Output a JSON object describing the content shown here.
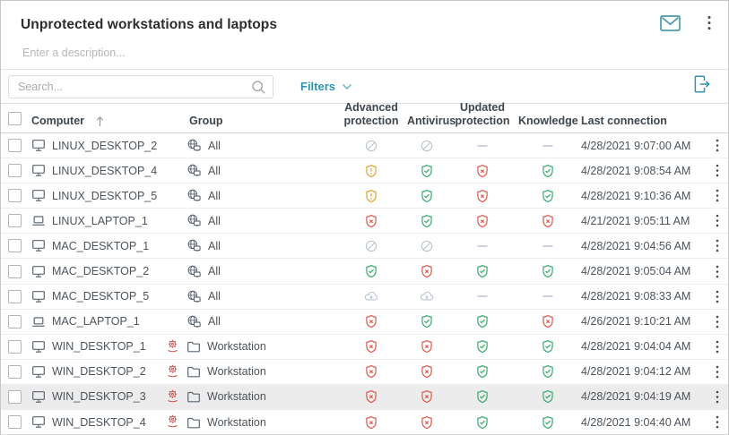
{
  "header": {
    "title": "Unprotected workstations and laptops",
    "icons": [
      "envelope-icon",
      "kebab-menu-icon"
    ]
  },
  "description_placeholder": "Enter a description...",
  "toolbar": {
    "search_placeholder": "Search...",
    "filters_label": "Filters",
    "icons": [
      "search-icon",
      "chevron-down-icon",
      "export-icon"
    ]
  },
  "colors": {
    "accent_teal": "#2e95ad",
    "ok_green": "#3eae73",
    "error_red": "#dd5f53",
    "warning_orange": "#e8a33d",
    "muted_blue_gray": "#b9c3d2",
    "highlight_row_bg": "#ececec"
  },
  "table": {
    "sort": {
      "column": "Computer",
      "direction": "asc"
    },
    "columns": [
      {
        "label": "Computer"
      },
      {
        "label": "Group"
      },
      {
        "label": "Advanced protection"
      },
      {
        "label": "Antivirus"
      },
      {
        "label": "Updated protection"
      },
      {
        "label": "Knowledge"
      },
      {
        "label": "Last connection"
      }
    ],
    "status_icon_names": {
      "disabled": "no-license-slashed-circle-icon",
      "warning": "shield-warning-icon",
      "ok": "shield-ok-icon",
      "error": "shield-error-icon",
      "none": "dash-icon",
      "installing": "cloud-installing-icon"
    },
    "rows": [
      {
        "name": "LINUX_DESKTOP_2",
        "device": "desktop",
        "alert": false,
        "group": "All",
        "group_icon": "all-group",
        "statuses": [
          "disabled",
          "disabled",
          "none",
          "none"
        ],
        "last_connection": "4/28/2021 9:07:00 AM",
        "highlighted": false
      },
      {
        "name": "LINUX_DESKTOP_4",
        "device": "desktop",
        "alert": false,
        "group": "All",
        "group_icon": "all-group",
        "statuses": [
          "warning",
          "ok",
          "error",
          "ok"
        ],
        "last_connection": "4/28/2021 9:08:54 AM",
        "highlighted": false
      },
      {
        "name": "LINUX_DESKTOP_5",
        "device": "desktop",
        "alert": false,
        "group": "All",
        "group_icon": "all-group",
        "statuses": [
          "warning",
          "ok",
          "error",
          "ok"
        ],
        "last_connection": "4/28/2021 9:10:36 AM",
        "highlighted": false
      },
      {
        "name": "LINUX_LAPTOP_1",
        "device": "laptop",
        "alert": false,
        "group": "All",
        "group_icon": "all-group",
        "statuses": [
          "error",
          "ok",
          "error",
          "error"
        ],
        "last_connection": "4/21/2021 9:05:11 AM",
        "highlighted": false
      },
      {
        "name": "MAC_DESKTOP_1",
        "device": "desktop",
        "alert": false,
        "group": "All",
        "group_icon": "all-group",
        "statuses": [
          "disabled",
          "disabled",
          "none",
          "none"
        ],
        "last_connection": "4/28/2021 9:04:56 AM",
        "highlighted": false
      },
      {
        "name": "MAC_DESKTOP_2",
        "device": "desktop",
        "alert": false,
        "group": "All",
        "group_icon": "all-group",
        "statuses": [
          "ok",
          "error",
          "ok",
          "ok"
        ],
        "last_connection": "4/28/2021 9:05:04 AM",
        "highlighted": false
      },
      {
        "name": "MAC_DESKTOP_5",
        "device": "desktop",
        "alert": false,
        "group": "All",
        "group_icon": "all-group",
        "statuses": [
          "installing",
          "installing",
          "none",
          "none"
        ],
        "last_connection": "4/28/2021 9:08:33 AM",
        "highlighted": false
      },
      {
        "name": "MAC_LAPTOP_1",
        "device": "laptop",
        "alert": false,
        "group": "All",
        "group_icon": "all-group",
        "statuses": [
          "error",
          "ok",
          "ok",
          "error"
        ],
        "last_connection": "4/26/2021 9:10:21 AM",
        "highlighted": false
      },
      {
        "name": "WIN_DESKTOP_1",
        "device": "desktop",
        "alert": true,
        "group": "Workstation",
        "group_icon": "folder",
        "statuses": [
          "error",
          "error",
          "ok",
          "ok"
        ],
        "last_connection": "4/28/2021 9:04:04 AM",
        "highlighted": false
      },
      {
        "name": "WIN_DESKTOP_2",
        "device": "desktop",
        "alert": true,
        "group": "Workstation",
        "group_icon": "folder",
        "statuses": [
          "error",
          "error",
          "ok",
          "ok"
        ],
        "last_connection": "4/28/2021 9:04:12 AM",
        "highlighted": false
      },
      {
        "name": "WIN_DESKTOP_3",
        "device": "desktop",
        "alert": true,
        "group": "Workstation",
        "group_icon": "folder",
        "statuses": [
          "error",
          "error",
          "ok",
          "ok"
        ],
        "last_connection": "4/28/2021 9:04:19 AM",
        "highlighted": true
      },
      {
        "name": "WIN_DESKTOP_4",
        "device": "desktop",
        "alert": true,
        "group": "Workstation",
        "group_icon": "folder",
        "statuses": [
          "error",
          "error",
          "ok",
          "ok"
        ],
        "last_connection": "4/28/2021 9:04:40 AM",
        "highlighted": false
      }
    ]
  }
}
